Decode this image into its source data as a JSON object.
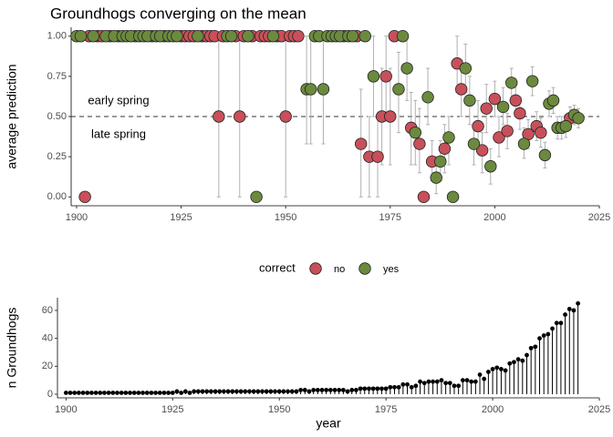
{
  "chart_data": [
    {
      "type": "scatter",
      "title": "Groundhogs converging on the mean",
      "y_label": "average prediction",
      "annotations": [
        "early spring",
        "late spring"
      ],
      "hline": 0.5,
      "legend_title": "correct",
      "legend_position": "bottom",
      "xlim": [
        1898.7,
        2025
      ],
      "ylim": [
        -0.055,
        1.055
      ],
      "xticks": [
        1900,
        1925,
        1950,
        1975,
        2000,
        2025
      ],
      "yticks": [
        {
          "value": 0,
          "label": "0.00"
        },
        {
          "value": 0.25,
          "label": "0.25"
        },
        {
          "value": 0.5,
          "label": "0.50"
        },
        {
          "value": 0.75,
          "label": "0.75"
        },
        {
          "value": 1,
          "label": "1.00"
        }
      ],
      "series": [
        {
          "name": "no",
          "color": "#c8505a",
          "x": [
            1902,
            1903,
            1905,
            1906,
            1908,
            1910,
            1914,
            1918,
            1921,
            1925,
            1926,
            1927,
            1928,
            1930,
            1931,
            1932,
            1933,
            1934,
            1935,
            1938,
            1939,
            1940,
            1942,
            1944,
            1945,
            1946,
            1948,
            1949,
            1950,
            1951,
            1952,
            1953,
            1964,
            1967,
            1968,
            1970,
            1972,
            1973,
            1974,
            1975,
            1976,
            1980,
            1982,
            1983,
            1985,
            1988,
            1991,
            1992,
            1996,
            1997,
            1998,
            2000,
            2001,
            2003,
            2005,
            2006,
            2008,
            2010,
            2011,
            2018
          ],
          "values": [
            0,
            1,
            1,
            1,
            1,
            1,
            1,
            1,
            1,
            1,
            1,
            1,
            1,
            1,
            1,
            1,
            1,
            0.5,
            1,
            1,
            0.5,
            1,
            1,
            1,
            1,
            1,
            1,
            1,
            0.5,
            1,
            1,
            1,
            1,
            1,
            0.33,
            0.25,
            0.25,
            0.5,
            0.75,
            0.5,
            1,
            0.43,
            0.33,
            0,
            0.22,
            0.3,
            0.83,
            0.67,
            0.44,
            0.29,
            0.55,
            0.61,
            0.37,
            0.41,
            0.6,
            0.52,
            0.39,
            0.44,
            0.4,
            0.49
          ],
          "lower": [
            null,
            null,
            null,
            null,
            null,
            null,
            null,
            null,
            null,
            null,
            null,
            null,
            null,
            null,
            null,
            null,
            null,
            0,
            null,
            null,
            0,
            null,
            null,
            null,
            null,
            null,
            null,
            null,
            0,
            null,
            null,
            null,
            null,
            null,
            0,
            0,
            0,
            0.2,
            0.5,
            0.2,
            null,
            0.2,
            0.15,
            null,
            0.1,
            0.15,
            0.65,
            0.5,
            0.3,
            0.15,
            0.4,
            0.5,
            0.25,
            0.3,
            0.5,
            0.42,
            0.3,
            0.35,
            0.31,
            0.42
          ],
          "upper": [
            null,
            null,
            null,
            null,
            null,
            null,
            null,
            null,
            null,
            null,
            null,
            null,
            null,
            null,
            null,
            null,
            null,
            1,
            null,
            null,
            1,
            null,
            null,
            null,
            null,
            null,
            null,
            null,
            1,
            null,
            null,
            null,
            null,
            null,
            0.67,
            0.5,
            0.5,
            0.8,
            1,
            0.8,
            null,
            0.65,
            0.55,
            null,
            0.35,
            0.45,
            1,
            0.85,
            0.6,
            0.4,
            0.7,
            0.72,
            0.5,
            0.52,
            0.7,
            0.62,
            0.48,
            0.53,
            0.49,
            0.56
          ]
        },
        {
          "name": "yes",
          "color": "#6b8a3e",
          "x": [
            1900,
            1901,
            1904,
            1907,
            1909,
            1911,
            1912,
            1913,
            1915,
            1916,
            1917,
            1919,
            1920,
            1922,
            1923,
            1924,
            1929,
            1936,
            1937,
            1941,
            1943,
            1947,
            1955,
            1956,
            1957,
            1958,
            1959,
            1960,
            1961,
            1962,
            1963,
            1965,
            1966,
            1969,
            1971,
            1977,
            1978,
            1979,
            1981,
            1984,
            1986,
            1987,
            1989,
            1990,
            1993,
            1994,
            1995,
            1999,
            2002,
            2004,
            2007,
            2009,
            2012,
            2013,
            2014,
            2015,
            2016,
            2017,
            2019,
            2020
          ],
          "values": [
            1,
            1,
            1,
            1,
            1,
            1,
            1,
            1,
            1,
            1,
            1,
            1,
            1,
            1,
            1,
            1,
            1,
            1,
            1,
            1,
            0,
            1,
            0.67,
            0.67,
            1,
            1,
            0.67,
            1,
            1,
            1,
            1,
            1,
            1,
            1,
            0.75,
            0.67,
            1,
            0.8,
            0.4,
            0.62,
            0.12,
            0.22,
            0.37,
            0,
            0.8,
            0.6,
            0.33,
            0.19,
            0.56,
            0.71,
            0.33,
            0.72,
            0.26,
            0.58,
            0.6,
            0.43,
            0.43,
            0.44,
            0.51,
            0.49
          ],
          "lower": [
            null,
            null,
            null,
            null,
            null,
            null,
            null,
            null,
            null,
            null,
            null,
            null,
            null,
            null,
            null,
            null,
            null,
            null,
            null,
            null,
            null,
            null,
            0.33,
            0.33,
            null,
            null,
            0.33,
            null,
            null,
            null,
            null,
            null,
            null,
            null,
            0.5,
            0.4,
            null,
            0.6,
            0.2,
            0.45,
            0.02,
            0.1,
            0.2,
            null,
            0.65,
            0.45,
            0.2,
            0.08,
            0.45,
            0.6,
            0.24,
            0.63,
            0.18,
            0.5,
            0.52,
            0.36,
            0.36,
            0.37,
            0.45,
            0.43
          ],
          "upper": [
            null,
            null,
            null,
            null,
            null,
            null,
            null,
            null,
            null,
            null,
            null,
            null,
            null,
            null,
            null,
            null,
            null,
            null,
            null,
            null,
            null,
            null,
            1,
            1,
            null,
            null,
            1,
            null,
            null,
            null,
            null,
            null,
            null,
            null,
            1,
            0.9,
            null,
            1,
            0.6,
            0.8,
            0.25,
            0.35,
            0.5,
            null,
            0.95,
            0.75,
            0.45,
            0.3,
            0.68,
            0.8,
            0.43,
            0.81,
            0.34,
            0.66,
            0.68,
            0.5,
            0.5,
            0.51,
            0.57,
            0.55
          ]
        }
      ]
    },
    {
      "type": "lollipop",
      "x_label": "year",
      "y_label": "n Groundhogs",
      "color": "#000000",
      "xlim": [
        1898,
        2025
      ],
      "ylim": [
        -2.6,
        69.1
      ],
      "xticks": [
        1900,
        1925,
        1950,
        1975,
        2000,
        2025
      ],
      "yticks": [
        0,
        20,
        40,
        60
      ],
      "x": [
        1900,
        1901,
        1902,
        1903,
        1904,
        1905,
        1906,
        1907,
        1908,
        1909,
        1910,
        1911,
        1912,
        1913,
        1914,
        1915,
        1916,
        1917,
        1918,
        1919,
        1920,
        1921,
        1922,
        1923,
        1924,
        1925,
        1926,
        1927,
        1928,
        1929,
        1930,
        1931,
        1932,
        1933,
        1934,
        1935,
        1936,
        1937,
        1938,
        1939,
        1940,
        1941,
        1942,
        1943,
        1944,
        1945,
        1946,
        1947,
        1948,
        1949,
        1950,
        1951,
        1952,
        1953,
        1954,
        1955,
        1956,
        1957,
        1958,
        1959,
        1960,
        1961,
        1962,
        1963,
        1964,
        1965,
        1966,
        1967,
        1968,
        1969,
        1970,
        1971,
        1972,
        1973,
        1974,
        1975,
        1976,
        1977,
        1978,
        1979,
        1980,
        1981,
        1982,
        1983,
        1984,
        1985,
        1986,
        1987,
        1988,
        1989,
        1990,
        1991,
        1992,
        1993,
        1994,
        1995,
        1996,
        1997,
        1998,
        1999,
        2000,
        2001,
        2002,
        2003,
        2004,
        2005,
        2006,
        2007,
        2008,
        2009,
        2010,
        2011,
        2012,
        2013,
        2014,
        2015,
        2016,
        2017,
        2018,
        2019,
        2020
      ],
      "values": [
        1,
        1,
        1,
        1,
        1,
        1,
        1,
        1,
        1,
        1,
        1,
        1,
        1,
        1,
        1,
        1,
        1,
        1,
        1,
        1,
        1,
        1,
        1,
        1,
        1,
        1,
        2,
        1,
        2,
        1,
        2,
        2,
        2,
        2,
        2,
        2,
        2,
        2,
        2,
        2,
        2,
        2,
        2,
        2,
        2,
        2,
        2,
        2,
        2,
        2,
        2,
        2,
        2,
        2,
        2,
        3,
        3,
        2,
        3,
        3,
        3,
        3,
        3,
        3,
        3,
        3,
        2,
        3,
        3,
        4,
        4,
        4,
        4,
        4,
        4,
        4,
        5,
        5,
        5,
        7,
        7,
        5,
        6,
        9,
        8,
        9,
        9,
        9,
        10,
        8,
        8,
        6,
        6,
        10,
        10,
        9,
        9,
        14,
        11,
        16,
        18,
        19,
        18,
        17,
        22,
        23,
        25,
        24,
        28,
        33,
        34,
        40,
        42,
        43,
        47,
        51,
        51,
        57,
        61,
        60,
        65
      ]
    }
  ]
}
